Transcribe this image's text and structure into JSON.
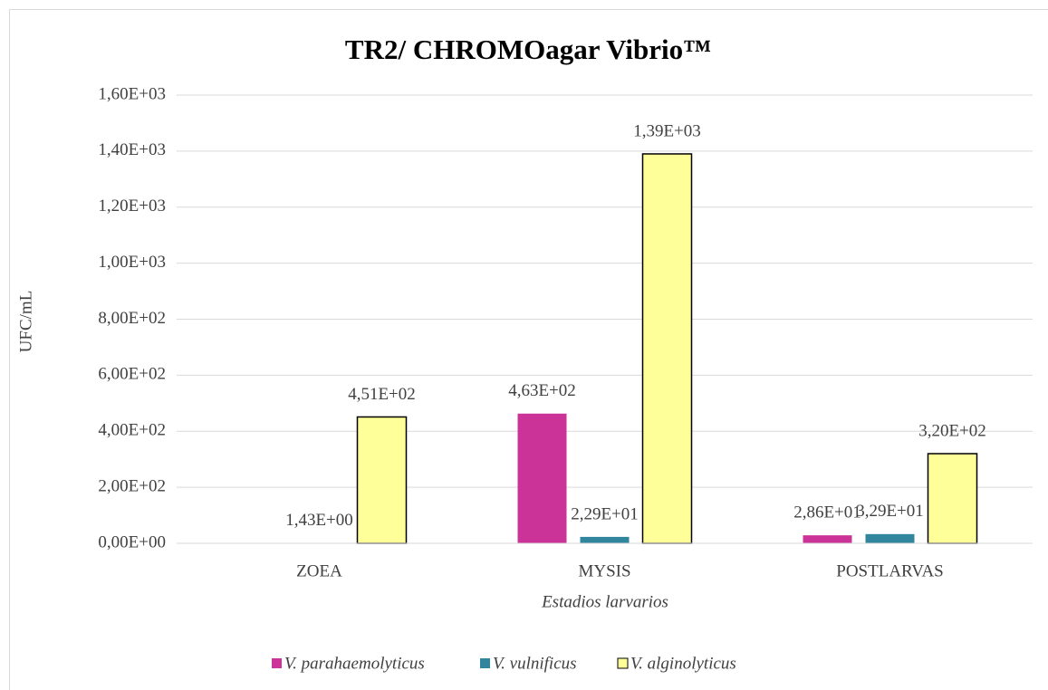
{
  "chart_data": {
    "type": "bar",
    "title": "TR2/ CHROMOagar Vibrio™",
    "x_label": "Estadios larvarios",
    "y_label": "UFC/mL",
    "categories": [
      "ZOEA",
      "MYSIS",
      "POSTLARVAS"
    ],
    "series": [
      {
        "name": "V. parahaemolyticus",
        "color": "#cc3399",
        "values": [
          null,
          463,
          28.6
        ],
        "value_labels": [
          null,
          "4,63E+02",
          "2,86E+01"
        ]
      },
      {
        "name": "V. vulnificus",
        "color": "#31859c",
        "values": [
          1.43,
          22.9,
          32.9
        ],
        "value_labels": [
          "1,43E+00",
          "2,29E+01",
          "3,29E+01"
        ]
      },
      {
        "name": "V. alginolyticus",
        "color": "#ffff99",
        "values": [
          451,
          1390,
          320
        ],
        "value_labels": [
          "4,51E+02",
          "1,39E+03",
          "3,20E+02"
        ]
      }
    ],
    "ylim": [
      0,
      1600
    ],
    "yticks": [
      {
        "value": 0,
        "label": "0,00E+00"
      },
      {
        "value": 200,
        "label": "2,00E+02"
      },
      {
        "value": 400,
        "label": "4,00E+02"
      },
      {
        "value": 600,
        "label": "6,00E+02"
      },
      {
        "value": 800,
        "label": "8,00E+02"
      },
      {
        "value": 1000,
        "label": "1,00E+03"
      },
      {
        "value": 1200,
        "label": "1,20E+03"
      },
      {
        "value": 1400,
        "label": "1,40E+03"
      },
      {
        "value": 1600,
        "label": "1,60E+03"
      }
    ],
    "grid": true,
    "legend": "bottom"
  }
}
